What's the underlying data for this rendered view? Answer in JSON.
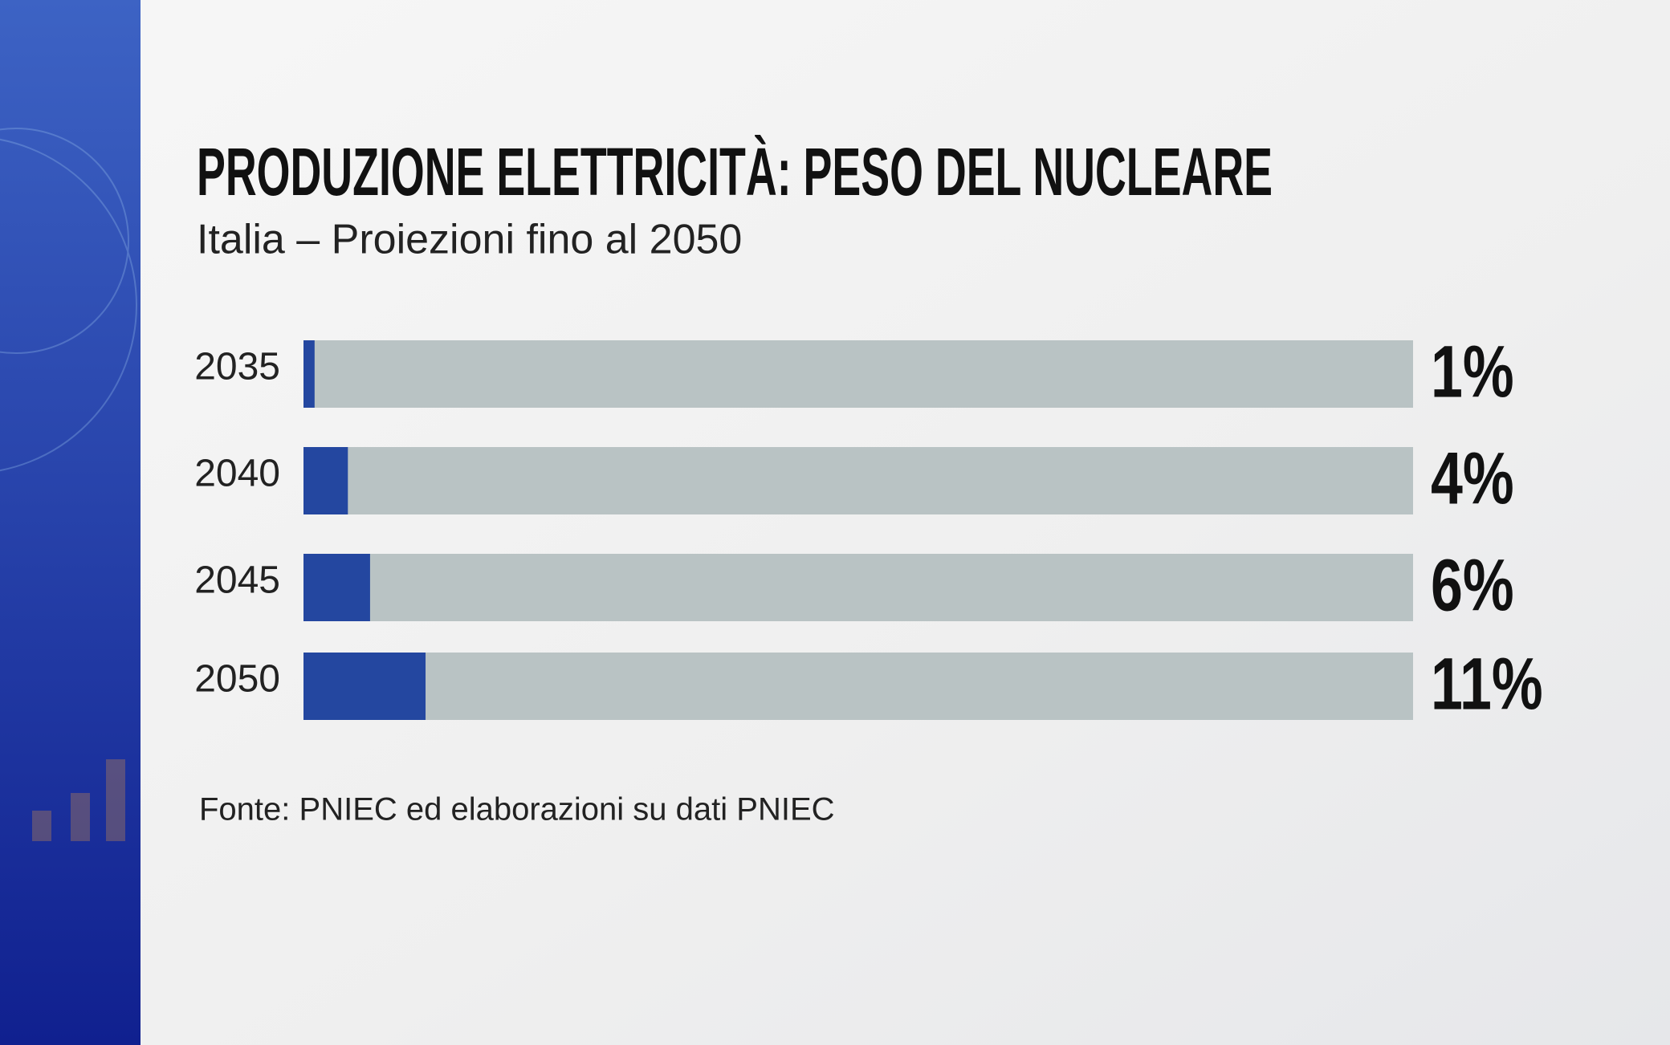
{
  "chart_data": {
    "type": "bar",
    "orientation": "horizontal",
    "title": "PRODUZIONE ELETTRICITÀ: PESO DEL NUCLEARE",
    "subtitle": "Italia – Proiezioni fino al 2050",
    "categories": [
      "2035",
      "2040",
      "2045",
      "2050"
    ],
    "values": [
      1,
      4,
      6,
      11
    ],
    "value_labels": [
      "1%",
      "4%",
      "6%",
      "11%"
    ],
    "color": "#2447a0",
    "xlim": [
      0,
      100
    ],
    "source": "Fonte: PNIEC ed elaborazioni su dati PNIEC"
  }
}
